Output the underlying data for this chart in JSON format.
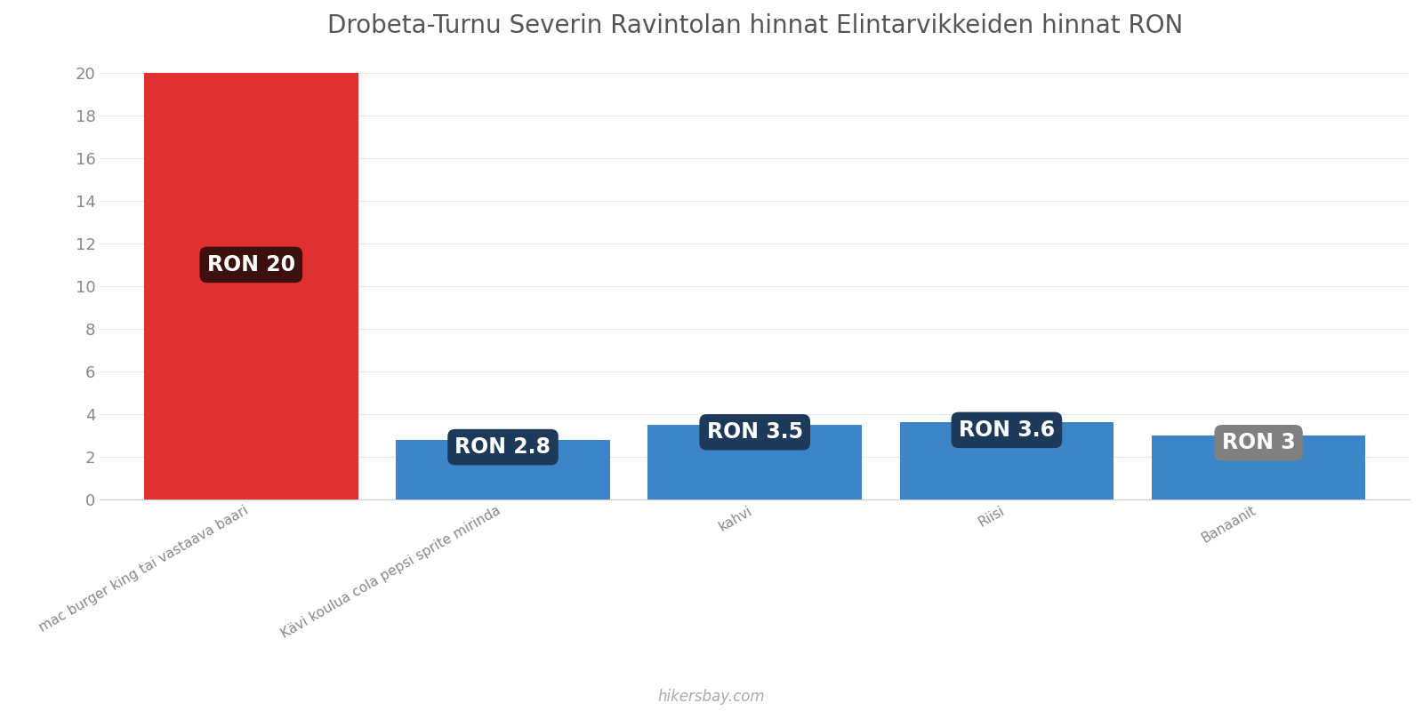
{
  "title": "Drobeta-Turnu Severin Ravintolan hinnat Elintarvikkeiden hinnat RON",
  "categories": [
    "mac burger king tai vastaava baari",
    "Kävi koulua cola pepsi sprite mirinda",
    "kahvi",
    "Riisi",
    "Banaanit"
  ],
  "values": [
    20,
    2.8,
    3.5,
    3.6,
    3.0
  ],
  "bar_colors": [
    "#e03030",
    "#3d85c8",
    "#3d85c8",
    "#3d85c8",
    "#3d85c8"
  ],
  "labels": [
    "RON 20",
    "RON 2.8",
    "RON 3.5",
    "RON 3.6",
    "RON 3"
  ],
  "label_box_colors": [
    "#3d1010",
    "#1e3a5a",
    "#1e3a5a",
    "#1e3a5a",
    "#808080"
  ],
  "ylim": [
    0,
    21
  ],
  "yticks": [
    0,
    2,
    4,
    6,
    8,
    10,
    12,
    14,
    16,
    18,
    20
  ],
  "background_color": "#ffffff",
  "title_fontsize": 20,
  "label_fontsize": 17,
  "tick_fontsize": 13,
  "watermark": "hikersbay.com",
  "label_text_color": "#ffffff"
}
